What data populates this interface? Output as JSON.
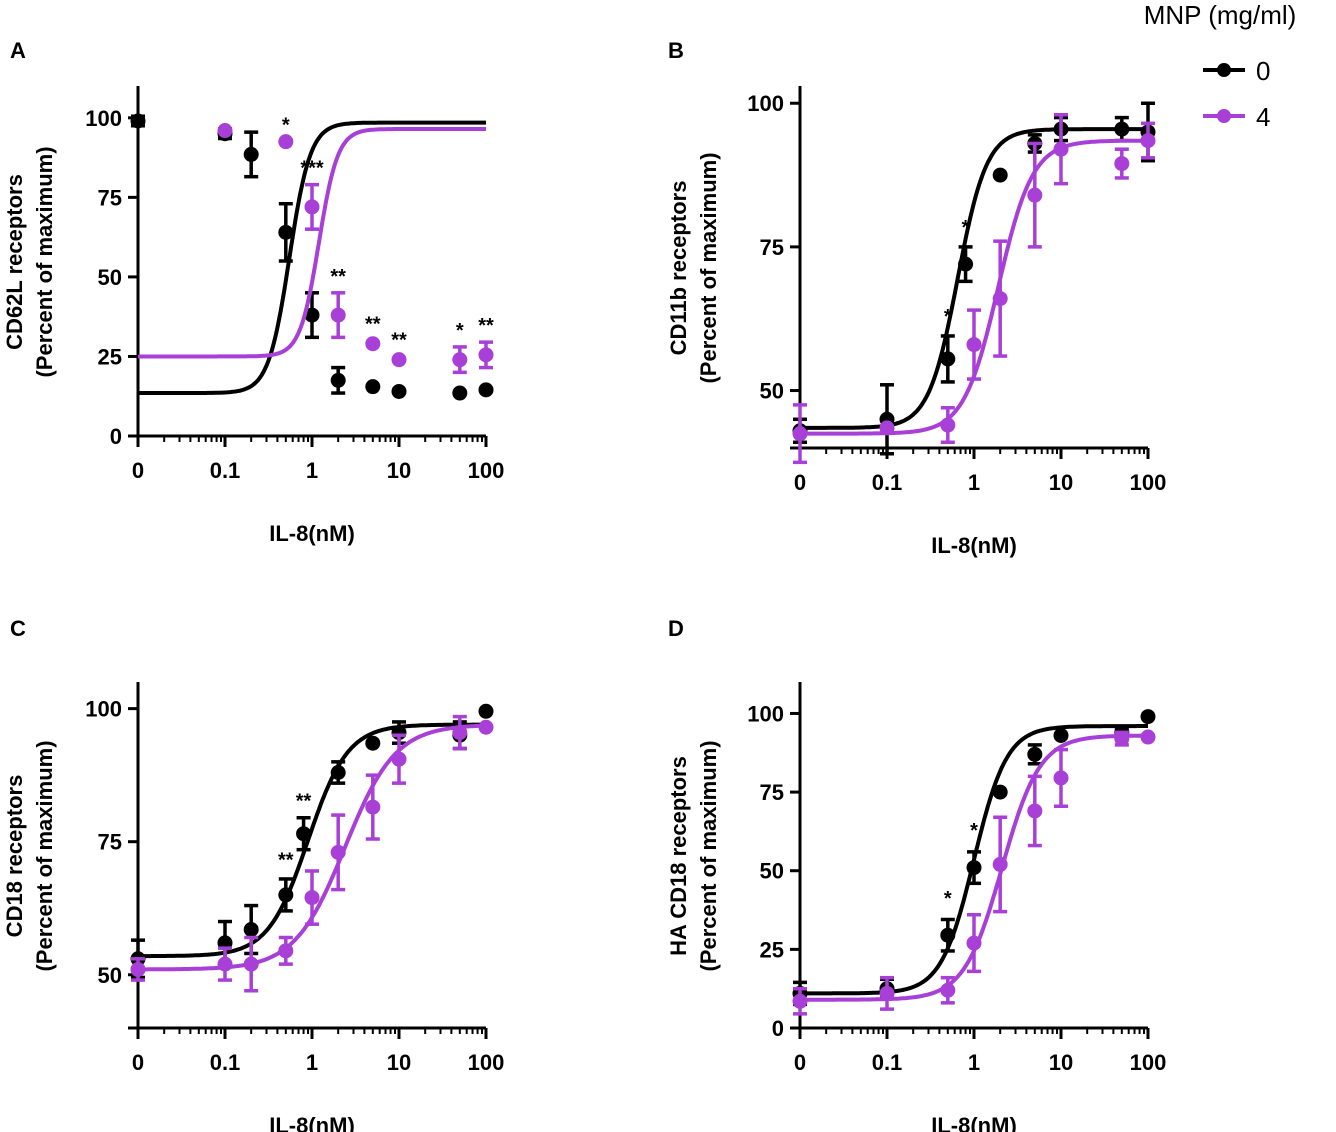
{
  "legend": {
    "title": "MNP (mg/ml)",
    "entries": [
      {
        "label": "0",
        "color": "#000000"
      },
      {
        "label": "4",
        "color": "#a83fd6"
      }
    ]
  },
  "chart_data": [
    {
      "panel": "A",
      "type": "scatter",
      "ylim": [
        0,
        110
      ],
      "yticks": [
        0,
        25,
        50,
        75,
        100
      ],
      "xticks": [
        "0",
        "0.1",
        "1",
        "10",
        "100"
      ],
      "xlabel": "IL-8(nM)",
      "ylabel": [
        "CD62L receptors",
        "(Percent of maximum)"
      ],
      "series": [
        {
          "name": "0",
          "color": "#000000",
          "x": [
            0,
            0.1,
            0.2,
            0.5,
            1,
            2,
            5,
            10,
            50,
            100
          ],
          "y": [
            99,
            95,
            88.5,
            64,
            38,
            17.5,
            15.5,
            14,
            13.5,
            14.5
          ],
          "err": [
            1.5,
            1.5,
            7,
            9,
            7,
            4,
            1,
            1,
            1,
            1
          ],
          "fit": {
            "bottom": 13.5,
            "top": 98.5,
            "ec50": 0.55,
            "hill": 3.6
          }
        },
        {
          "name": "4",
          "color": "#a83fd6",
          "x": [
            0.1,
            0.5,
            1,
            2,
            5,
            10,
            50,
            100
          ],
          "y": [
            96,
            92.5,
            72,
            38,
            29,
            24,
            24,
            25.5
          ],
          "err": [
            1,
            1,
            7,
            7,
            1,
            1,
            4,
            4
          ],
          "fit": {
            "bottom": 25,
            "top": 96.5,
            "ec50": 1.2,
            "hill": 4.0
          }
        }
      ],
      "annotations": [
        {
          "x": 0.5,
          "y": 92.5,
          "text": "*"
        },
        {
          "x": 1,
          "y": 79,
          "text": "***"
        },
        {
          "x": 2,
          "y": 45,
          "text": "**"
        },
        {
          "x": 5,
          "y": 30,
          "text": "**"
        },
        {
          "x": 10,
          "y": 25,
          "text": "**"
        },
        {
          "x": 50,
          "y": 28,
          "text": "*"
        },
        {
          "x": 100,
          "y": 29.5,
          "text": "**"
        }
      ]
    },
    {
      "panel": "B",
      "type": "scatter",
      "ylim": [
        40,
        103
      ],
      "yticks": [
        50,
        75,
        100
      ],
      "xticks": [
        "0",
        "0.1",
        "1",
        "10",
        "100"
      ],
      "xlabel": "IL-8(nM)",
      "ylabel": [
        "CD11b receptors",
        "(Percent of maximum)"
      ],
      "series": [
        {
          "name": "0",
          "color": "#000000",
          "x": [
            0,
            0.1,
            0.5,
            0.8,
            2,
            5,
            10,
            50,
            100
          ],
          "y": [
            43,
            45,
            55.5,
            72,
            87.5,
            93,
            95.5,
            95.5,
            95
          ],
          "err": [
            2,
            6,
            4,
            3,
            1,
            1.5,
            2,
            2,
            5
          ],
          "fit": {
            "bottom": 43.5,
            "top": 95.5,
            "ec50": 0.65,
            "hill": 2.6
          }
        },
        {
          "name": "4",
          "color": "#a83fd6",
          "x": [
            0,
            0.1,
            0.5,
            1,
            2,
            5,
            10,
            50,
            100
          ],
          "y": [
            42.5,
            43.5,
            44,
            58,
            66,
            84,
            92,
            89.5,
            93.5
          ],
          "err": [
            5,
            1,
            3,
            6,
            10,
            9,
            6,
            2.5,
            3
          ],
          "fit": {
            "bottom": 42.5,
            "top": 93.5,
            "ec50": 1.9,
            "hill": 2.2
          }
        }
      ],
      "annotations": [
        {
          "x": 0.5,
          "y": 60,
          "text": "*"
        },
        {
          "x": 0.8,
          "y": 75.5,
          "text": "*"
        }
      ]
    },
    {
      "panel": "C",
      "type": "scatter",
      "ylim": [
        40,
        105
      ],
      "yticks": [
        50,
        75,
        100
      ],
      "xticks": [
        "0",
        "0.1",
        "1",
        "10",
        "100"
      ],
      "xlabel": "IL-8(nM)",
      "ylabel": [
        "CD18 receptors",
        "(Percent of maximum)"
      ],
      "series": [
        {
          "name": "0",
          "color": "#000000",
          "x": [
            0,
            0.1,
            0.2,
            0.5,
            0.8,
            2,
            5,
            10,
            50,
            100
          ],
          "y": [
            53,
            56,
            58.5,
            65,
            76.5,
            88,
            93.5,
            95.5,
            95,
            99.5
          ],
          "err": [
            3.5,
            4,
            4.5,
            3,
            3,
            2,
            1,
            2,
            2.5,
            1
          ],
          "fit": {
            "bottom": 53.5,
            "top": 97,
            "ec50": 0.9,
            "hill": 1.9
          }
        },
        {
          "name": "4",
          "color": "#a83fd6",
          "x": [
            0,
            0.1,
            0.2,
            0.5,
            1,
            2,
            5,
            10,
            50,
            100
          ],
          "y": [
            51,
            52,
            52,
            54.5,
            64.5,
            73,
            81.5,
            90.5,
            95.5,
            96.5
          ],
          "err": [
            2,
            3,
            5,
            2.5,
            5,
            7,
            6,
            4.5,
            3,
            1
          ],
          "fit": {
            "bottom": 51,
            "top": 97,
            "ec50": 2.4,
            "hill": 1.5
          }
        }
      ],
      "annotations": [
        {
          "x": 0.5,
          "y": 68.5,
          "text": "**"
        },
        {
          "x": 0.8,
          "y": 79.5,
          "text": "**"
        }
      ]
    },
    {
      "panel": "D",
      "type": "scatter",
      "ylim": [
        0,
        110
      ],
      "yticks": [
        0,
        25,
        50,
        75,
        100
      ],
      "xticks": [
        "0",
        "0.1",
        "1",
        "10",
        "100"
      ],
      "xlabel": "IL-8(nM)",
      "ylabel": [
        "HA CD18 receptors",
        "(Percent of maximum)"
      ],
      "series": [
        {
          "name": "0",
          "color": "#000000",
          "x": [
            0,
            0.1,
            0.5,
            1,
            2,
            5,
            10,
            50,
            100
          ],
          "y": [
            11,
            12.5,
            29.5,
            51,
            75,
            87,
            93,
            94,
            99
          ],
          "err": [
            3.5,
            3,
            5,
            5,
            1,
            3,
            1,
            1.5,
            1
          ],
          "fit": {
            "bottom": 11,
            "top": 96,
            "ec50": 1.0,
            "hill": 2.3
          }
        },
        {
          "name": "4",
          "color": "#a83fd6",
          "x": [
            0,
            0.1,
            0.5,
            1,
            2,
            5,
            10,
            50,
            100
          ],
          "y": [
            8.5,
            11,
            12,
            27,
            52,
            69,
            79.5,
            92,
            92.5
          ],
          "err": [
            4,
            5,
            4,
            9,
            15,
            11,
            9,
            2,
            1
          ],
          "fit": {
            "bottom": 9,
            "top": 93,
            "ec50": 2.1,
            "hill": 2.0
          }
        }
      ],
      "annotations": [
        {
          "x": 0.5,
          "y": 36,
          "text": "*"
        },
        {
          "x": 1,
          "y": 57.5,
          "text": "*"
        }
      ]
    }
  ]
}
